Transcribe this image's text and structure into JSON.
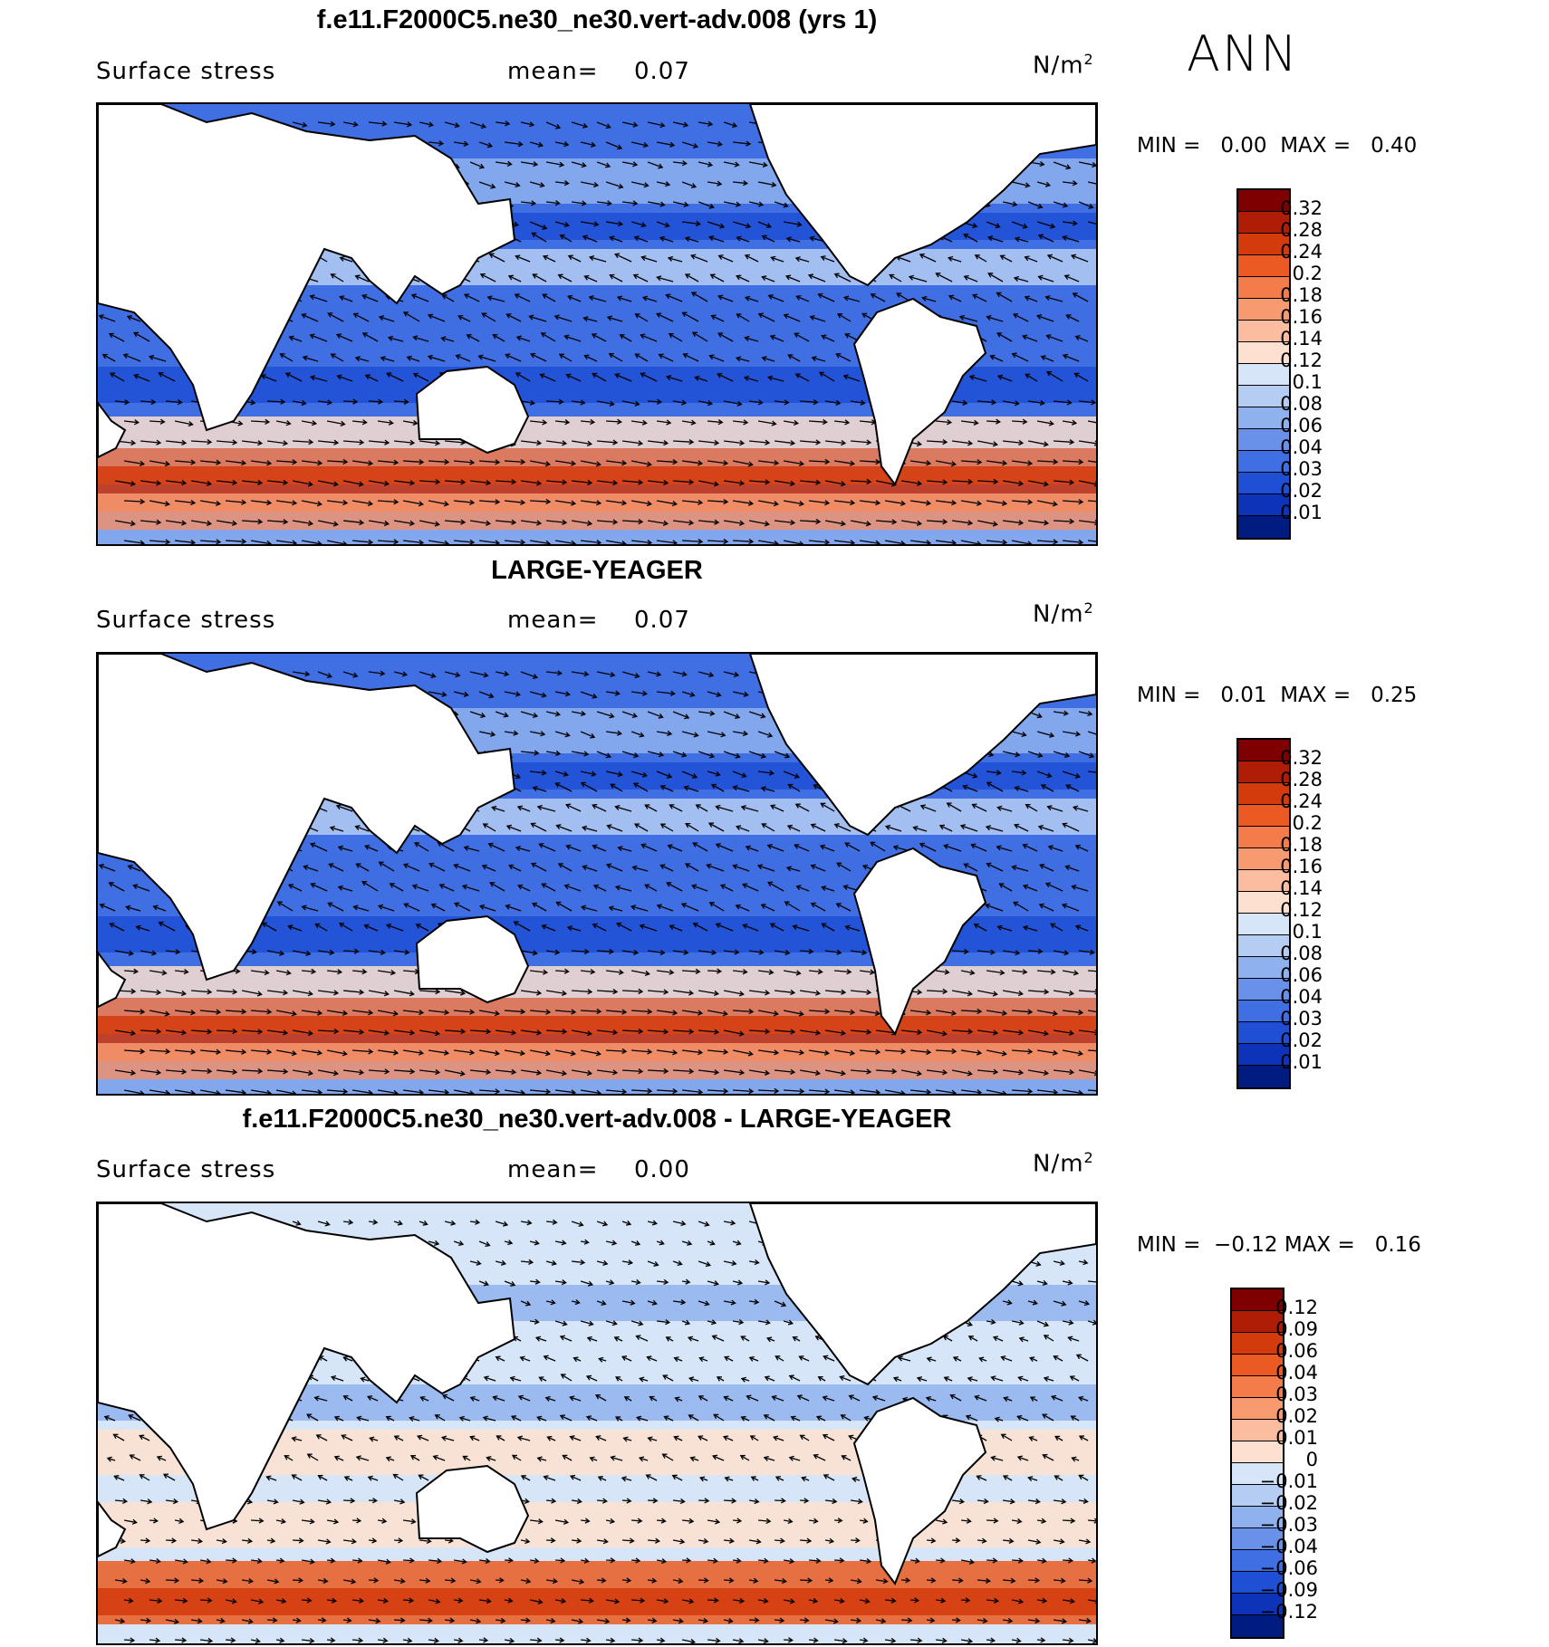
{
  "season": "ANN",
  "units_base": "N/m",
  "units_exp": "2",
  "panels": [
    {
      "title": "f.e11.F2000C5.ne30_ne30.vert-adv.008 (yrs 1)",
      "variable": "Surface stress",
      "mean_label": "mean=",
      "mean_value": "0.07",
      "min_label": "MIN =",
      "min_value": "0.00",
      "max_label": "MAX =",
      "max_value": "0.40",
      "levels": [
        "0.32",
        "0.28",
        "0.24",
        "0.2",
        "0.18",
        "0.16",
        "0.14",
        "0.12",
        "0.1",
        "0.08",
        "0.06",
        "0.04",
        "0.03",
        "0.02",
        "0.01"
      ],
      "colors": [
        "#7f0000",
        "#b01d06",
        "#d33a0c",
        "#ea5a22",
        "#f47c4a",
        "#f89a70",
        "#fbbca0",
        "#fde0cf",
        "#d6e6f8",
        "#b5cdf2",
        "#8fb1ee",
        "#6a91ea",
        "#3f6fe3",
        "#1f4fd4",
        "#0c33b8",
        "#001c80"
      ]
    },
    {
      "title": "LARGE-YEAGER",
      "variable": "Surface stress",
      "mean_label": "mean=",
      "mean_value": "0.07",
      "min_label": "MIN =",
      "min_value": "0.01",
      "max_label": "MAX =",
      "max_value": "0.25",
      "levels": [
        "0.32",
        "0.28",
        "0.24",
        "0.2",
        "0.18",
        "0.16",
        "0.14",
        "0.12",
        "0.1",
        "0.08",
        "0.06",
        "0.04",
        "0.03",
        "0.02",
        "0.01"
      ],
      "colors": [
        "#7f0000",
        "#b01d06",
        "#d33a0c",
        "#ea5a22",
        "#f47c4a",
        "#f89a70",
        "#fbbca0",
        "#fde0cf",
        "#d6e6f8",
        "#b5cdf2",
        "#8fb1ee",
        "#6a91ea",
        "#3f6fe3",
        "#1f4fd4",
        "#0c33b8",
        "#001c80"
      ]
    },
    {
      "title": "f.e11.F2000C5.ne30_ne30.vert-adv.008 - LARGE-YEAGER",
      "variable": "Surface stress",
      "mean_label": "mean=",
      "mean_value": "0.00",
      "min_label": "MIN =",
      "min_value": "−0.12",
      "max_label": "MAX =",
      "max_value": "0.16",
      "levels": [
        "0.12",
        "0.09",
        "0.06",
        "0.04",
        "0.03",
        "0.02",
        "0.01",
        "0",
        "−0.01",
        "−0.02",
        "−0.03",
        "−0.04",
        "−0.06",
        "−0.09",
        "−0.12"
      ],
      "colors": [
        "#7f0000",
        "#b01d06",
        "#d33a0c",
        "#ea5a22",
        "#f47c4a",
        "#f89a70",
        "#fbbca0",
        "#fde0cf",
        "#d6e6f8",
        "#b5cdf2",
        "#8fb1ee",
        "#6a91ea",
        "#3f6fe3",
        "#1f4fd4",
        "#0c33b8",
        "#001c80"
      ]
    }
  ]
}
